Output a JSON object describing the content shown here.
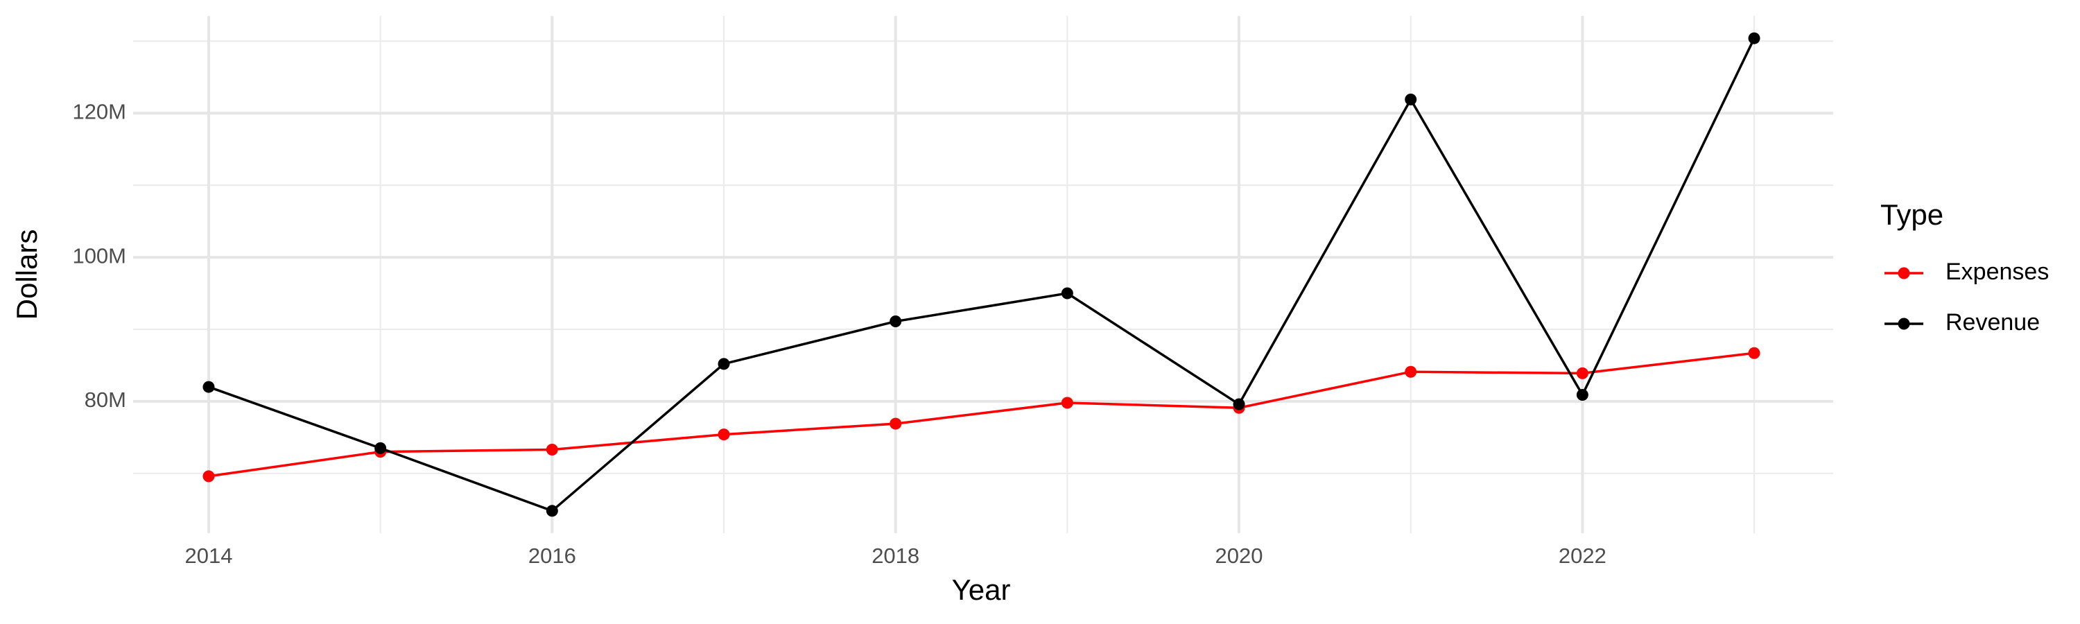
{
  "chart_data": {
    "type": "line",
    "x_label": "Year",
    "y_label": "Dollars",
    "legend_title": "Type",
    "x": [
      2014,
      2015,
      2016,
      2017,
      2018,
      2019,
      2020,
      2021,
      2022,
      2023
    ],
    "series": [
      {
        "name": "Expenses",
        "color": "#ff0000",
        "values": [
          69600000,
          73000000,
          73300000,
          75400000,
          76900000,
          79800000,
          79100000,
          84100000,
          83900000,
          86700000
        ]
      },
      {
        "name": "Revenue",
        "color": "#000000",
        "values": [
          82000000,
          73500000,
          64800000,
          85200000,
          91100000,
          95000000,
          79600000,
          121900000,
          80900000,
          130400000
        ]
      }
    ],
    "xlim": [
      2013.56,
      2023.46
    ],
    "xticks": [
      2014,
      2016,
      2018,
      2020,
      2022
    ],
    "x_minor_ticks": [
      2015,
      2017,
      2019,
      2021,
      2023
    ],
    "ylim": [
      61700000,
      133500000
    ],
    "yticks": [
      {
        "value": 80000000,
        "label": "80M"
      },
      {
        "value": 100000000,
        "label": "100M"
      },
      {
        "value": 120000000,
        "label": "120M"
      }
    ],
    "y_minor_ticks": [
      70000000,
      90000000,
      110000000,
      130000000
    ],
    "grid": true,
    "legend": "right"
  }
}
